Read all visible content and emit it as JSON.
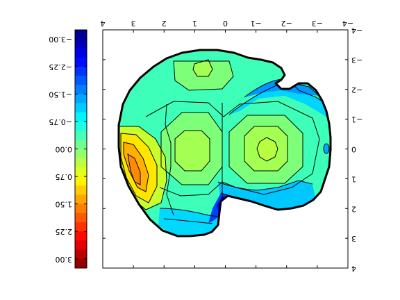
{
  "chart_data": {
    "type": "heatmap",
    "subtype": "filled-contour",
    "orientation": "rotated 180 degrees",
    "title": "",
    "xlabel": "",
    "ylabel": "",
    "xlim": [
      4,
      -4
    ],
    "ylim": [
      -4,
      4
    ],
    "x_ticks": [
      4,
      3,
      2,
      1,
      0,
      -1,
      -2,
      -3,
      -4
    ],
    "x_tick_labels": [
      "4",
      "3",
      "2",
      "1",
      "0",
      "−1",
      "−2",
      "−3",
      "−4"
    ],
    "y_ticks": [
      -4,
      -3,
      -2,
      -1,
      0,
      1,
      2,
      3,
      4
    ],
    "y_tick_labels": [
      "−4",
      "−3",
      "−2",
      "−1",
      "0",
      "1",
      "2",
      "3",
      "4"
    ],
    "colormap": "jet",
    "colorbar": {
      "vmin": -3.25,
      "vmax": 3.25,
      "ticks": [
        -3.0,
        -2.25,
        -1.5,
        -0.75,
        0.0,
        0.75,
        1.5,
        2.25,
        3.0
      ],
      "tick_labels": [
        "−3.00",
        "−2.25",
        "−1.50",
        "−0.75",
        "0.00",
        "0.75",
        "1.50",
        "2.25",
        "3.00"
      ]
    },
    "grid": false,
    "features": [
      {
        "kind": "peak",
        "x": 3.1,
        "y": 0.75,
        "value": 1.6
      },
      {
        "kind": "local-max",
        "x": 1.25,
        "y": 0.0,
        "value": 0.5
      },
      {
        "kind": "local-max",
        "x": -1.6,
        "y": 0.0,
        "value": 0.5
      },
      {
        "kind": "local-max",
        "x": 0.7,
        "y": -2.75,
        "value": 0.2
      },
      {
        "kind": "trough",
        "x": 0.25,
        "y": 1.85,
        "value": -2.3
      },
      {
        "kind": "trough",
        "x": -1.6,
        "y": -2.0,
        "value": -2.0
      },
      {
        "kind": "local-min",
        "x": -3.4,
        "y": 0.0,
        "value": -1.2
      }
    ]
  },
  "colors": {
    "axes": "#000000",
    "background": "#ffffff",
    "contour_lines": "#000000"
  }
}
